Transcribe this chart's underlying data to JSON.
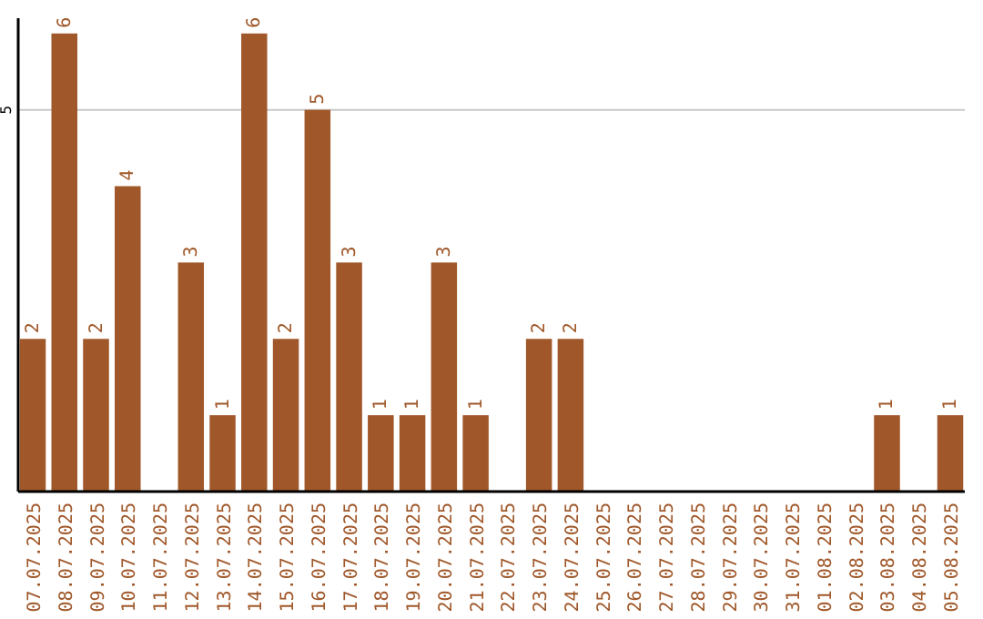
{
  "chart_data": {
    "type": "bar",
    "categories": [
      "07.07.2025",
      "08.07.2025",
      "09.07.2025",
      "10.07.2025",
      "11.07.2025",
      "12.07.2025",
      "13.07.2025",
      "14.07.2025",
      "15.07.2025",
      "16.07.2025",
      "17.07.2025",
      "18.07.2025",
      "19.07.2025",
      "20.07.2025",
      "21.07.2025",
      "22.07.2025",
      "23.07.2025",
      "24.07.2025",
      "25.07.2025",
      "26.07.2025",
      "27.07.2025",
      "28.07.2025",
      "29.07.2025",
      "30.07.2025",
      "31.07.2025",
      "01.08.2025",
      "02.08.2025",
      "03.08.2025",
      "04.08.2025",
      "05.08.2025"
    ],
    "values": [
      2,
      6,
      2,
      4,
      0,
      3,
      1,
      6,
      2,
      5,
      3,
      1,
      1,
      3,
      1,
      0,
      2,
      2,
      0,
      0,
      0,
      0,
      0,
      0,
      0,
      0,
      0,
      1,
      0,
      1
    ],
    "value_labels": [
      "2",
      "6",
      "2",
      "4",
      null,
      "3",
      "1",
      "6",
      "2",
      "5",
      "3",
      "1",
      "1",
      "3",
      "1",
      null,
      "2",
      "2",
      null,
      null,
      null,
      null,
      null,
      null,
      null,
      null,
      null,
      "1",
      null,
      "1"
    ],
    "color": "#a0582a",
    "ylim": [
      0,
      6.2
    ],
    "yticks": [
      0,
      5
    ],
    "grid": "y"
  }
}
